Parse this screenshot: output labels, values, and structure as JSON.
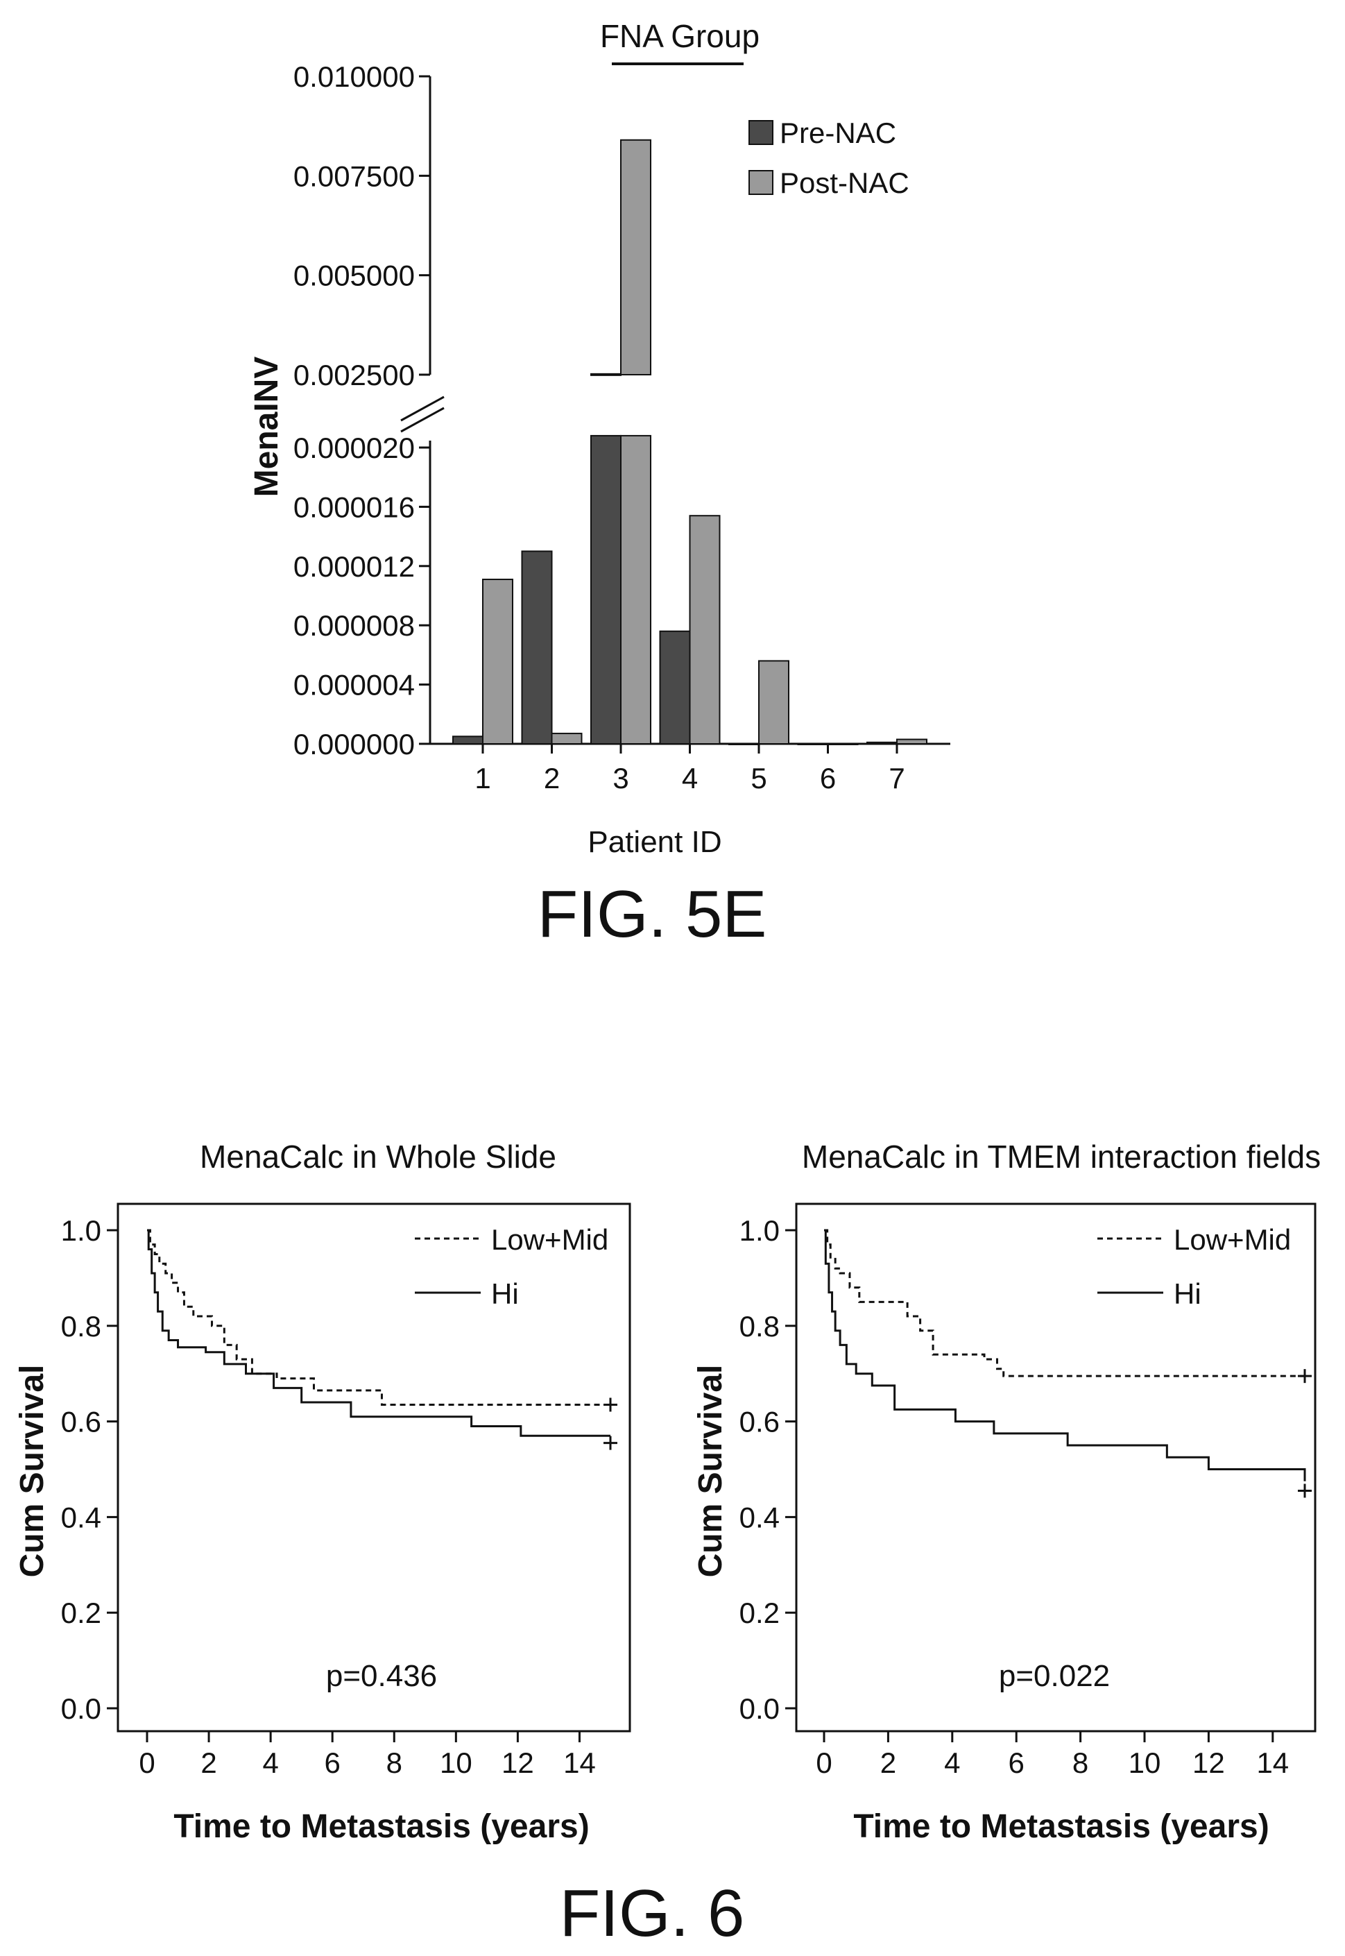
{
  "figure_5e": {
    "caption": "FIG. 5E",
    "title": "FNA Group",
    "ylabel": "MenaINV",
    "xlabel": "Patient ID"
  },
  "figure_6": {
    "caption": "FIG. 6",
    "left_panel": {
      "title": "MenaCalc in Whole Slide",
      "ylabel": "Cum Survival",
      "xlabel": "Time to Metastasis (years)",
      "p_value": "p=0.436"
    },
    "right_panel": {
      "title": "MenaCalc in TMEM interaction fields",
      "ylabel": "Cum Survival",
      "xlabel": "Time to Metastasis (years)",
      "p_value": "p=0.022"
    }
  },
  "chart_data": [
    {
      "type": "bar",
      "title": "FNA Group",
      "xlabel": "Patient ID",
      "ylabel": "MenaINV",
      "categories": [
        "1",
        "2",
        "3",
        "4",
        "5",
        "6",
        "7"
      ],
      "series": [
        {
          "name": "Pre-NAC",
          "color": "#4a4a4a",
          "values": [
            5e-07,
            1.3e-05,
            0.00252,
            7.6e-06,
            0,
            0,
            1e-07
          ]
        },
        {
          "name": "Post-NAC",
          "color": "#9a9a9a",
          "values": [
            1.11e-05,
            7e-07,
            0.0084,
            1.54e-05,
            5.6e-06,
            0,
            3e-07
          ]
        }
      ],
      "y_axis_break": true,
      "ylim_lower": [
        0,
        2.2e-05
      ],
      "ylim_upper": [
        0.0025,
        0.01
      ],
      "yticks_lower": [
        "0.000000",
        "0.000004",
        "0.000008",
        "0.000012",
        "0.000016",
        "0.000020"
      ],
      "yticks_upper": [
        "0.002500",
        "0.005000",
        "0.007500",
        "0.010000"
      ],
      "legend_position": "top-right"
    },
    {
      "type": "line",
      "title": "MenaCalc in Whole Slide",
      "xlabel": "Time to Metastasis (years)",
      "ylabel": "Cum Survival",
      "xlim": [
        0,
        15
      ],
      "ylim": [
        0.0,
        1.0
      ],
      "xticks": [
        "0",
        "2",
        "4",
        "6",
        "8",
        "10",
        "12",
        "14"
      ],
      "yticks": [
        "0.0",
        "0.2",
        "0.4",
        "0.6",
        "0.8",
        "1.0"
      ],
      "annotation": "p=0.436",
      "legend_position": "top-right",
      "series": [
        {
          "name": "Low+Mid",
          "style": "dashed",
          "x": [
            0,
            0.1,
            0.25,
            0.4,
            0.6,
            0.8,
            1.0,
            1.2,
            1.5,
            2.1,
            2.5,
            2.9,
            3.4,
            4.2,
            5.4,
            7.6,
            15
          ],
          "y": [
            1.0,
            0.97,
            0.95,
            0.93,
            0.91,
            0.89,
            0.87,
            0.84,
            0.82,
            0.8,
            0.76,
            0.73,
            0.7,
            0.69,
            0.665,
            0.635,
            0.635
          ],
          "censor": [
            15,
            0.635
          ]
        },
        {
          "name": "Hi",
          "style": "solid",
          "x": [
            0,
            0.05,
            0.15,
            0.25,
            0.35,
            0.5,
            0.7,
            1.0,
            1.9,
            2.5,
            3.2,
            4.1,
            5.0,
            6.6,
            10.5,
            12.1,
            15
          ],
          "y": [
            1.0,
            0.96,
            0.91,
            0.87,
            0.83,
            0.79,
            0.77,
            0.755,
            0.745,
            0.72,
            0.7,
            0.67,
            0.64,
            0.61,
            0.59,
            0.57,
            0.57
          ],
          "censor": [
            15,
            0.555
          ]
        }
      ]
    },
    {
      "type": "line",
      "title": "MenaCalc in TMEM interaction fields",
      "xlabel": "Time to Metastasis (years)",
      "ylabel": "Cum Survival",
      "xlim": [
        0,
        15
      ],
      "ylim": [
        0.0,
        1.0
      ],
      "xticks": [
        "0",
        "2",
        "4",
        "6",
        "8",
        "10",
        "12",
        "14"
      ],
      "yticks": [
        "0.0",
        "0.2",
        "0.4",
        "0.6",
        "0.8",
        "1.0"
      ],
      "annotation": "p=0.022",
      "legend_position": "top-right",
      "series": [
        {
          "name": "Low+Mid",
          "style": "dashed",
          "x": [
            0,
            0.1,
            0.2,
            0.35,
            0.5,
            0.8,
            1.1,
            2.6,
            3.0,
            3.4,
            5.0,
            5.4,
            5.6,
            15
          ],
          "y": [
            1.0,
            0.97,
            0.94,
            0.92,
            0.91,
            0.88,
            0.85,
            0.82,
            0.79,
            0.74,
            0.73,
            0.71,
            0.695,
            0.695
          ],
          "censor": [
            15,
            0.695
          ]
        },
        {
          "name": "Hi",
          "style": "solid",
          "x": [
            0,
            0.05,
            0.15,
            0.25,
            0.35,
            0.5,
            0.7,
            1.0,
            1.5,
            2.2,
            4.1,
            5.3,
            7.6,
            10.7,
            12.0,
            15
          ],
          "y": [
            1.0,
            0.93,
            0.87,
            0.83,
            0.79,
            0.76,
            0.72,
            0.7,
            0.675,
            0.625,
            0.6,
            0.575,
            0.55,
            0.525,
            0.5,
            0.475
          ],
          "censor": [
            15,
            0.455
          ]
        }
      ]
    }
  ]
}
